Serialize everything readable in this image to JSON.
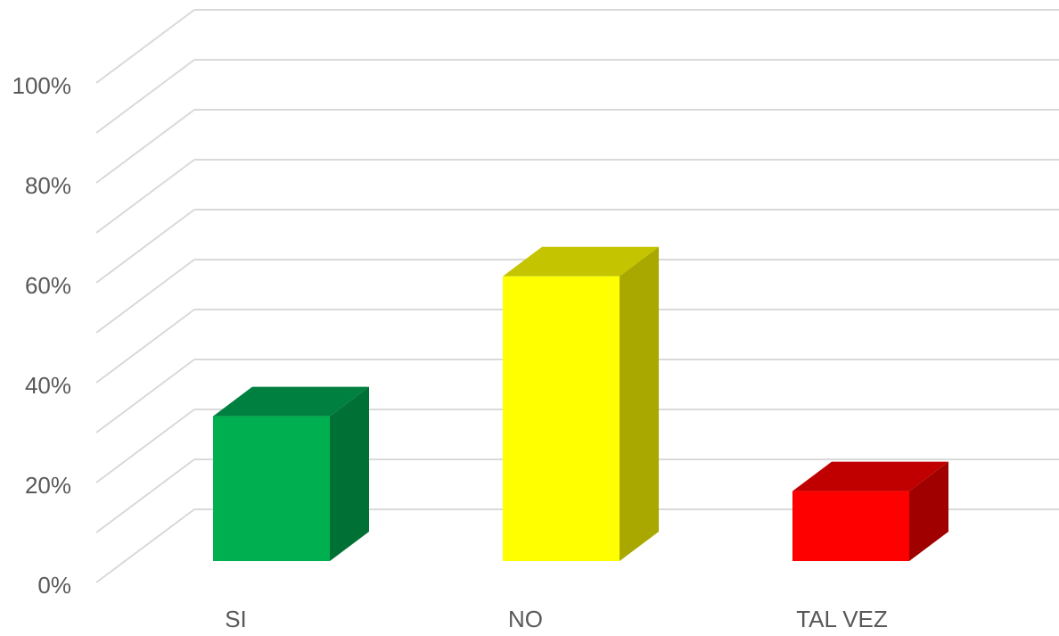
{
  "chart_data": {
    "type": "bar",
    "categories": [
      "SI",
      "NO",
      "TAL VEZ"
    ],
    "values": [
      29,
      57,
      14
    ],
    "ylim": [
      0,
      100
    ],
    "yticks": [
      "0%",
      "20%",
      "40%",
      "60%",
      "80%",
      "100%"
    ],
    "grid": true,
    "colors": {
      "SI": {
        "front": "#00b050",
        "top": "#008040",
        "side": "#007035"
      },
      "NO": {
        "front": "#ffff00",
        "top": "#c4c400",
        "side": "#a8a800"
      },
      "TAL VEZ": {
        "front": "#ff0000",
        "top": "#c00000",
        "side": "#a00000"
      }
    },
    "grid_color": "#d9d9d9"
  }
}
